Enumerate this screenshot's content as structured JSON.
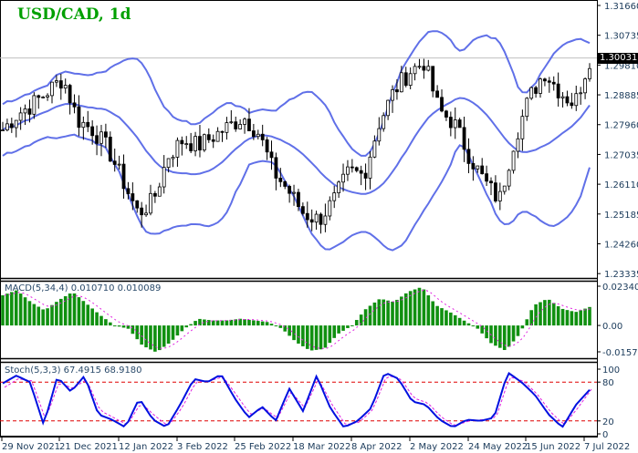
{
  "header": {
    "title": "USD/CAD, 1d"
  },
  "price_panel": {
    "current_price": "1.30031",
    "y_ticks": [
      "1.31660",
      "1.30735",
      "1.29810",
      "1.28885",
      "1.27960",
      "1.27035",
      "1.26110",
      "1.25185",
      "1.24260",
      "1.23335"
    ]
  },
  "macd_panel": {
    "label": "MACD(5,34,4) 0.010710 0.010089",
    "y_ticks": [
      "0.023405",
      "0.00",
      "-0.015713"
    ]
  },
  "stoch_panel": {
    "label": "Stoch(5,3,3) 67.4915 68.9180",
    "y_ticks": [
      "100",
      "80",
      "20",
      "0"
    ]
  },
  "x_axis": {
    "labels": [
      "29 Nov 2021",
      "21 Dec 2021",
      "12 Jan 2022",
      "3 Feb 2022",
      "25 Feb 2022",
      "18 Mar 2022",
      "8 Apr 2022",
      "2 May 2022",
      "24 May 2022",
      "15 Jun 2022",
      "7 Jul 2022"
    ]
  },
  "colors": {
    "title": "#00a000",
    "bollinger": "#6070e8",
    "macd_hist": "#109010",
    "macd_signal": "#e020e0",
    "stoch_main": "#0010e0",
    "stoch_signal": "#e020e0",
    "stoch_levels": "#e00000"
  },
  "chart_data": [
    {
      "type": "candlestick",
      "title": "USD/CAD, 1d",
      "indicator": "Bollinger Bands",
      "ylim": [
        1.2334,
        1.3166
      ],
      "x_labels": [
        "29 Nov 2021",
        "21 Dec 2021",
        "12 Jan 2022",
        "3 Feb 2022",
        "25 Feb 2022",
        "18 Mar 2022",
        "8 Apr 2022",
        "2 May 2022",
        "24 May 2022",
        "15 Jun 2022",
        "7 Jul 2022"
      ],
      "close_approx": [
        1.278,
        1.283,
        1.286,
        1.29,
        1.294,
        1.281,
        1.278,
        1.272,
        1.262,
        1.252,
        1.256,
        1.27,
        1.275,
        1.273,
        1.276,
        1.279,
        1.282,
        1.277,
        1.265,
        1.259,
        1.252,
        1.25,
        1.256,
        1.265,
        1.264,
        1.28,
        1.29,
        1.296,
        1.299,
        1.284,
        1.28,
        1.27,
        1.262,
        1.256,
        1.275,
        1.288,
        1.296,
        1.29,
        1.286,
        1.3
      ],
      "last_price": 1.30031
    },
    {
      "type": "bar",
      "title": "MACD(5,34,4)",
      "values_label": [
        0.01071,
        0.010089
      ],
      "ylim": [
        -0.015713,
        0.023405
      ],
      "histogram_approx": [
        0.018,
        0.021,
        0.014,
        0.009,
        0.015,
        0.02,
        0.013,
        0.006,
        0.0,
        -0.002,
        -0.012,
        -0.016,
        -0.01,
        -0.002,
        0.004,
        0.003,
        0.003,
        0.004,
        0.003,
        0.002,
        -0.002,
        -0.01,
        -0.015,
        -0.014,
        -0.005,
        0.0,
        0.01,
        0.016,
        0.014,
        0.02,
        0.023,
        0.012,
        0.008,
        0.003,
        -0.002,
        -0.011,
        -0.015,
        -0.005,
        0.012,
        0.016,
        0.01,
        0.008,
        0.011
      ]
    },
    {
      "type": "line",
      "title": "Stoch(5,3,3)",
      "values_label": [
        67.4915,
        68.918
      ],
      "ylim": [
        0,
        100
      ],
      "levels": [
        80,
        20
      ],
      "main_approx": [
        78,
        90,
        80,
        14,
        88,
        65,
        90,
        30,
        22,
        10,
        55,
        22,
        10,
        45,
        85,
        80,
        92,
        55,
        25,
        42,
        20,
        70,
        35,
        90,
        40,
        10,
        20,
        40,
        95,
        85,
        50,
        45,
        22,
        10,
        22,
        20,
        25,
        95,
        80,
        60,
        30,
        10,
        45,
        68
      ],
      "signal_approx": [
        72,
        85,
        82,
        22,
        80,
        70,
        84,
        36,
        25,
        14,
        48,
        28,
        12,
        40,
        80,
        82,
        88,
        60,
        30,
        40,
        24,
        65,
        40,
        85,
        45,
        14,
        18,
        38,
        90,
        86,
        55,
        48,
        26,
        12,
        20,
        22,
        24,
        88,
        82,
        62,
        34,
        14,
        40,
        69
      ]
    }
  ]
}
